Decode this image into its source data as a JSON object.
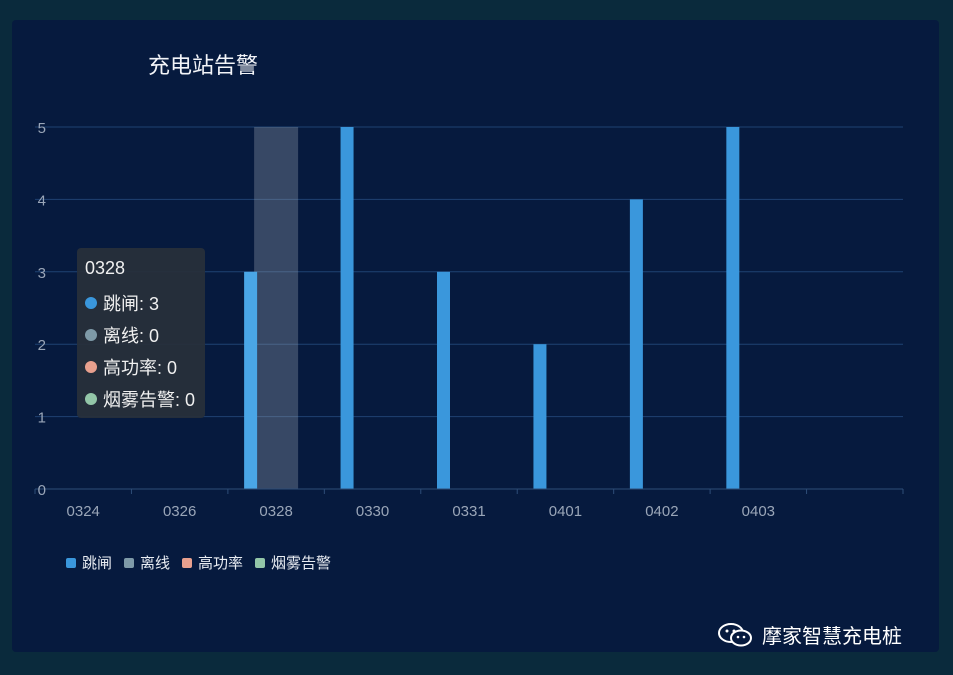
{
  "chart_data": {
    "type": "bar",
    "title": "充电站告警",
    "categories": [
      "0324",
      "0326",
      "0328",
      "0330",
      "0331",
      "0401",
      "0402",
      "0403",
      ""
    ],
    "series": [
      {
        "name": "跳闸",
        "color": "#3a97dc",
        "values": [
          0,
          0,
          3,
          5,
          3,
          2,
          4,
          5,
          0
        ]
      },
      {
        "name": "离线",
        "color": "#7e9aa8",
        "values": [
          0,
          0,
          0,
          0,
          0,
          0,
          0,
          0,
          0
        ]
      },
      {
        "name": "高功率",
        "color": "#e8a08e",
        "values": [
          0,
          0,
          0,
          0,
          0,
          0,
          0,
          0,
          0
        ]
      },
      {
        "name": "烟雾告警",
        "color": "#93c6a8",
        "values": [
          0,
          0,
          0,
          0,
          0,
          0,
          0,
          0,
          0
        ]
      }
    ],
    "yticks": [
      0,
      1,
      2,
      3,
      4,
      5
    ],
    "ylim": [
      0,
      5
    ],
    "grid": true,
    "legend": "bottom-left",
    "highlight_index": 2
  },
  "tooltip": {
    "title": "0328",
    "rows": [
      {
        "label": "跳闸: 3",
        "color": "#3a97dc"
      },
      {
        "label": "离线: 0",
        "color": "#7e9aa8"
      },
      {
        "label": "高功率: 0",
        "color": "#e8a08e"
      },
      {
        "label": "烟雾告警: 0",
        "color": "#93c6a8"
      }
    ]
  },
  "watermark": {
    "text": "摩家智慧充电桩",
    "icon": "wechat-icon"
  }
}
